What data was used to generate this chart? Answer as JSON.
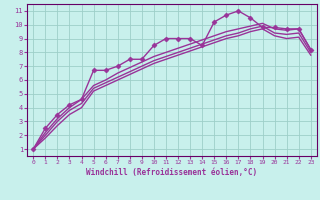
{
  "xlabel": "Windchill (Refroidissement éolien,°C)",
  "bg_color": "#c8f0ec",
  "grid_color": "#9ecfc9",
  "line_color": "#993399",
  "ax_color": "#660066",
  "xlim": [
    -0.5,
    23.5
  ],
  "ylim": [
    0.5,
    11.5
  ],
  "xticks": [
    0,
    1,
    2,
    3,
    4,
    5,
    6,
    7,
    8,
    9,
    10,
    11,
    12,
    13,
    14,
    15,
    16,
    17,
    18,
    19,
    20,
    21,
    22,
    23
  ],
  "yticks": [
    1,
    2,
    3,
    4,
    5,
    6,
    7,
    8,
    9,
    10,
    11
  ],
  "series": [
    {
      "comment": "main marked series - rises sharply then drops",
      "x": [
        0,
        1,
        2,
        3,
        4,
        5,
        6,
        7,
        8,
        9,
        10,
        11,
        12,
        13,
        14,
        15,
        16,
        17,
        18,
        19,
        20,
        21,
        22,
        23
      ],
      "y": [
        1.0,
        2.5,
        3.5,
        4.2,
        4.6,
        6.7,
        6.7,
        7.0,
        7.5,
        7.5,
        8.5,
        9.0,
        9.0,
        9.0,
        8.5,
        10.2,
        10.7,
        11.0,
        10.5,
        9.8,
        9.8,
        9.7,
        9.7,
        8.2
      ],
      "marker": "D",
      "markersize": 2.5,
      "lw": 1.0
    },
    {
      "comment": "upper smooth - linear rise to ~10",
      "x": [
        0,
        1,
        2,
        3,
        4,
        5,
        6,
        7,
        8,
        9,
        10,
        11,
        12,
        13,
        14,
        15,
        16,
        17,
        18,
        19,
        20,
        21,
        22,
        23
      ],
      "y": [
        1.0,
        2.2,
        3.2,
        4.0,
        4.6,
        5.6,
        6.0,
        6.5,
        6.9,
        7.3,
        7.7,
        8.0,
        8.3,
        8.6,
        8.9,
        9.2,
        9.5,
        9.7,
        9.9,
        10.1,
        9.7,
        9.6,
        9.7,
        8.2
      ],
      "marker": "",
      "markersize": 0,
      "lw": 1.0
    },
    {
      "comment": "middle smooth",
      "x": [
        0,
        1,
        2,
        3,
        4,
        5,
        6,
        7,
        8,
        9,
        10,
        11,
        12,
        13,
        14,
        15,
        16,
        17,
        18,
        19,
        20,
        21,
        22,
        23
      ],
      "y": [
        1.0,
        2.0,
        3.0,
        3.8,
        4.3,
        5.4,
        5.8,
        6.2,
        6.6,
        7.0,
        7.4,
        7.7,
        8.0,
        8.3,
        8.6,
        8.9,
        9.2,
        9.4,
        9.7,
        9.9,
        9.4,
        9.3,
        9.4,
        8.0
      ],
      "marker": "",
      "markersize": 0,
      "lw": 1.0
    },
    {
      "comment": "lower smooth - most linear",
      "x": [
        0,
        1,
        2,
        3,
        4,
        5,
        6,
        7,
        8,
        9,
        10,
        11,
        12,
        13,
        14,
        15,
        16,
        17,
        18,
        19,
        20,
        21,
        22,
        23
      ],
      "y": [
        1.0,
        1.8,
        2.7,
        3.5,
        4.0,
        5.2,
        5.6,
        6.0,
        6.4,
        6.8,
        7.2,
        7.5,
        7.8,
        8.1,
        8.4,
        8.7,
        9.0,
        9.2,
        9.5,
        9.7,
        9.2,
        9.0,
        9.1,
        7.8
      ],
      "marker": "",
      "markersize": 0,
      "lw": 1.0
    }
  ]
}
